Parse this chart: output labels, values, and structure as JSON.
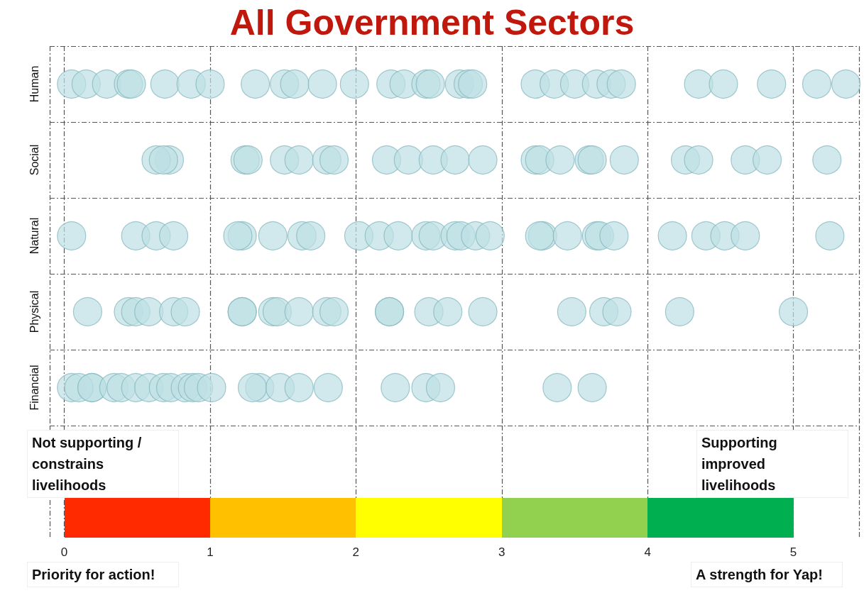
{
  "chart_data": {
    "type": "scatter",
    "title": "All Government Sectors",
    "orientation": "horizontal",
    "categories": [
      "Human",
      "Social",
      "Natural",
      "Physical",
      "Financial"
    ],
    "series": [
      {
        "color": "#bde0e4",
        "x": [
          "Human",
          "Human",
          "Human",
          "Human",
          "Human",
          "Human",
          "Human",
          "Human",
          "Human",
          "Human",
          "Human",
          "Human",
          "Human",
          "Human",
          "Human",
          "Human",
          "Human",
          "Human",
          "Human",
          "Human",
          "Human",
          "Human",
          "Human",
          "Human",
          "Human",
          "Human",
          "Human",
          "Human",
          "Human",
          "Human",
          "Human",
          "Social",
          "Social",
          "Social",
          "Social",
          "Social",
          "Social",
          "Social",
          "Social",
          "Social",
          "Social",
          "Social",
          "Social",
          "Social",
          "Social",
          "Social",
          "Social",
          "Social",
          "Social",
          "Social",
          "Social",
          "Social",
          "Social",
          "Social",
          "Social",
          "Social",
          "Natural",
          "Natural",
          "Natural",
          "Natural",
          "Natural",
          "Natural",
          "Natural",
          "Natural",
          "Natural",
          "Natural",
          "Natural",
          "Natural",
          "Natural",
          "Natural",
          "Natural",
          "Natural",
          "Natural",
          "Natural",
          "Natural",
          "Natural",
          "Natural",
          "Natural",
          "Natural",
          "Natural",
          "Natural",
          "Natural",
          "Natural",
          "Natural",
          "Natural",
          "Physical",
          "Physical",
          "Physical",
          "Physical",
          "Physical",
          "Physical",
          "Physical",
          "Physical",
          "Physical",
          "Physical",
          "Physical",
          "Physical",
          "Physical",
          "Physical",
          "Physical",
          "Physical",
          "Physical",
          "Physical",
          "Physical",
          "Physical",
          "Physical",
          "Physical",
          "Physical",
          "Financial",
          "Financial",
          "Financial",
          "Financial",
          "Financial",
          "Financial",
          "Financial",
          "Financial",
          "Financial",
          "Financial",
          "Financial",
          "Financial",
          "Financial",
          "Financial",
          "Financial",
          "Financial",
          "Financial",
          "Financial",
          "Financial",
          "Financial",
          "Financial",
          "Financial",
          "Financial",
          "Financial"
        ],
        "values": [
          0.05,
          0.15,
          0.29,
          0.44,
          0.46,
          0.69,
          0.87,
          1.0,
          1.31,
          1.51,
          1.58,
          1.77,
          1.99,
          2.24,
          2.33,
          2.48,
          2.51,
          2.71,
          2.77,
          2.8,
          3.23,
          3.36,
          3.5,
          3.65,
          3.75,
          3.82,
          4.35,
          4.52,
          4.85,
          5.16,
          5.36,
          0.72,
          0.63,
          0.68,
          1.24,
          1.26,
          1.51,
          1.61,
          1.8,
          1.85,
          2.21,
          2.36,
          2.53,
          2.68,
          2.87,
          3.23,
          3.26,
          3.4,
          3.6,
          3.62,
          3.84,
          4.26,
          4.35,
          4.67,
          4.82,
          5.23,
          0.05,
          0.49,
          0.63,
          0.75,
          1.22,
          1.19,
          1.43,
          1.63,
          1.69,
          2.02,
          2.16,
          2.29,
          2.48,
          2.53,
          2.68,
          2.72,
          2.82,
          2.92,
          3.28,
          3.26,
          3.45,
          3.65,
          3.67,
          3.77,
          4.17,
          4.4,
          4.53,
          4.67,
          5.25,
          0.16,
          0.44,
          0.49,
          0.58,
          0.75,
          0.83,
          1.22,
          1.22,
          1.43,
          1.46,
          1.61,
          1.8,
          1.85,
          2.23,
          2.23,
          2.5,
          2.63,
          2.87,
          3.48,
          3.7,
          3.79,
          4.22,
          5.0,
          0.05,
          0.19,
          0.1,
          0.19,
          0.34,
          0.39,
          0.49,
          0.58,
          0.68,
          0.73,
          0.83,
          0.88,
          0.92,
          1.01,
          1.34,
          1.29,
          1.48,
          1.61,
          1.81,
          2.27,
          2.48,
          2.58,
          3.38,
          3.62
        ]
      }
    ],
    "marker": "circle",
    "xlim": [
      -0.1,
      5.45
    ],
    "xticks": [
      0,
      1,
      2,
      3,
      4,
      5
    ],
    "grid": true,
    "annotations": [
      "Not supporting / constrains livelihoods",
      "Supporting improved livelihoods",
      "Priority for action!",
      "A strength for Yap!"
    ]
  }
}
